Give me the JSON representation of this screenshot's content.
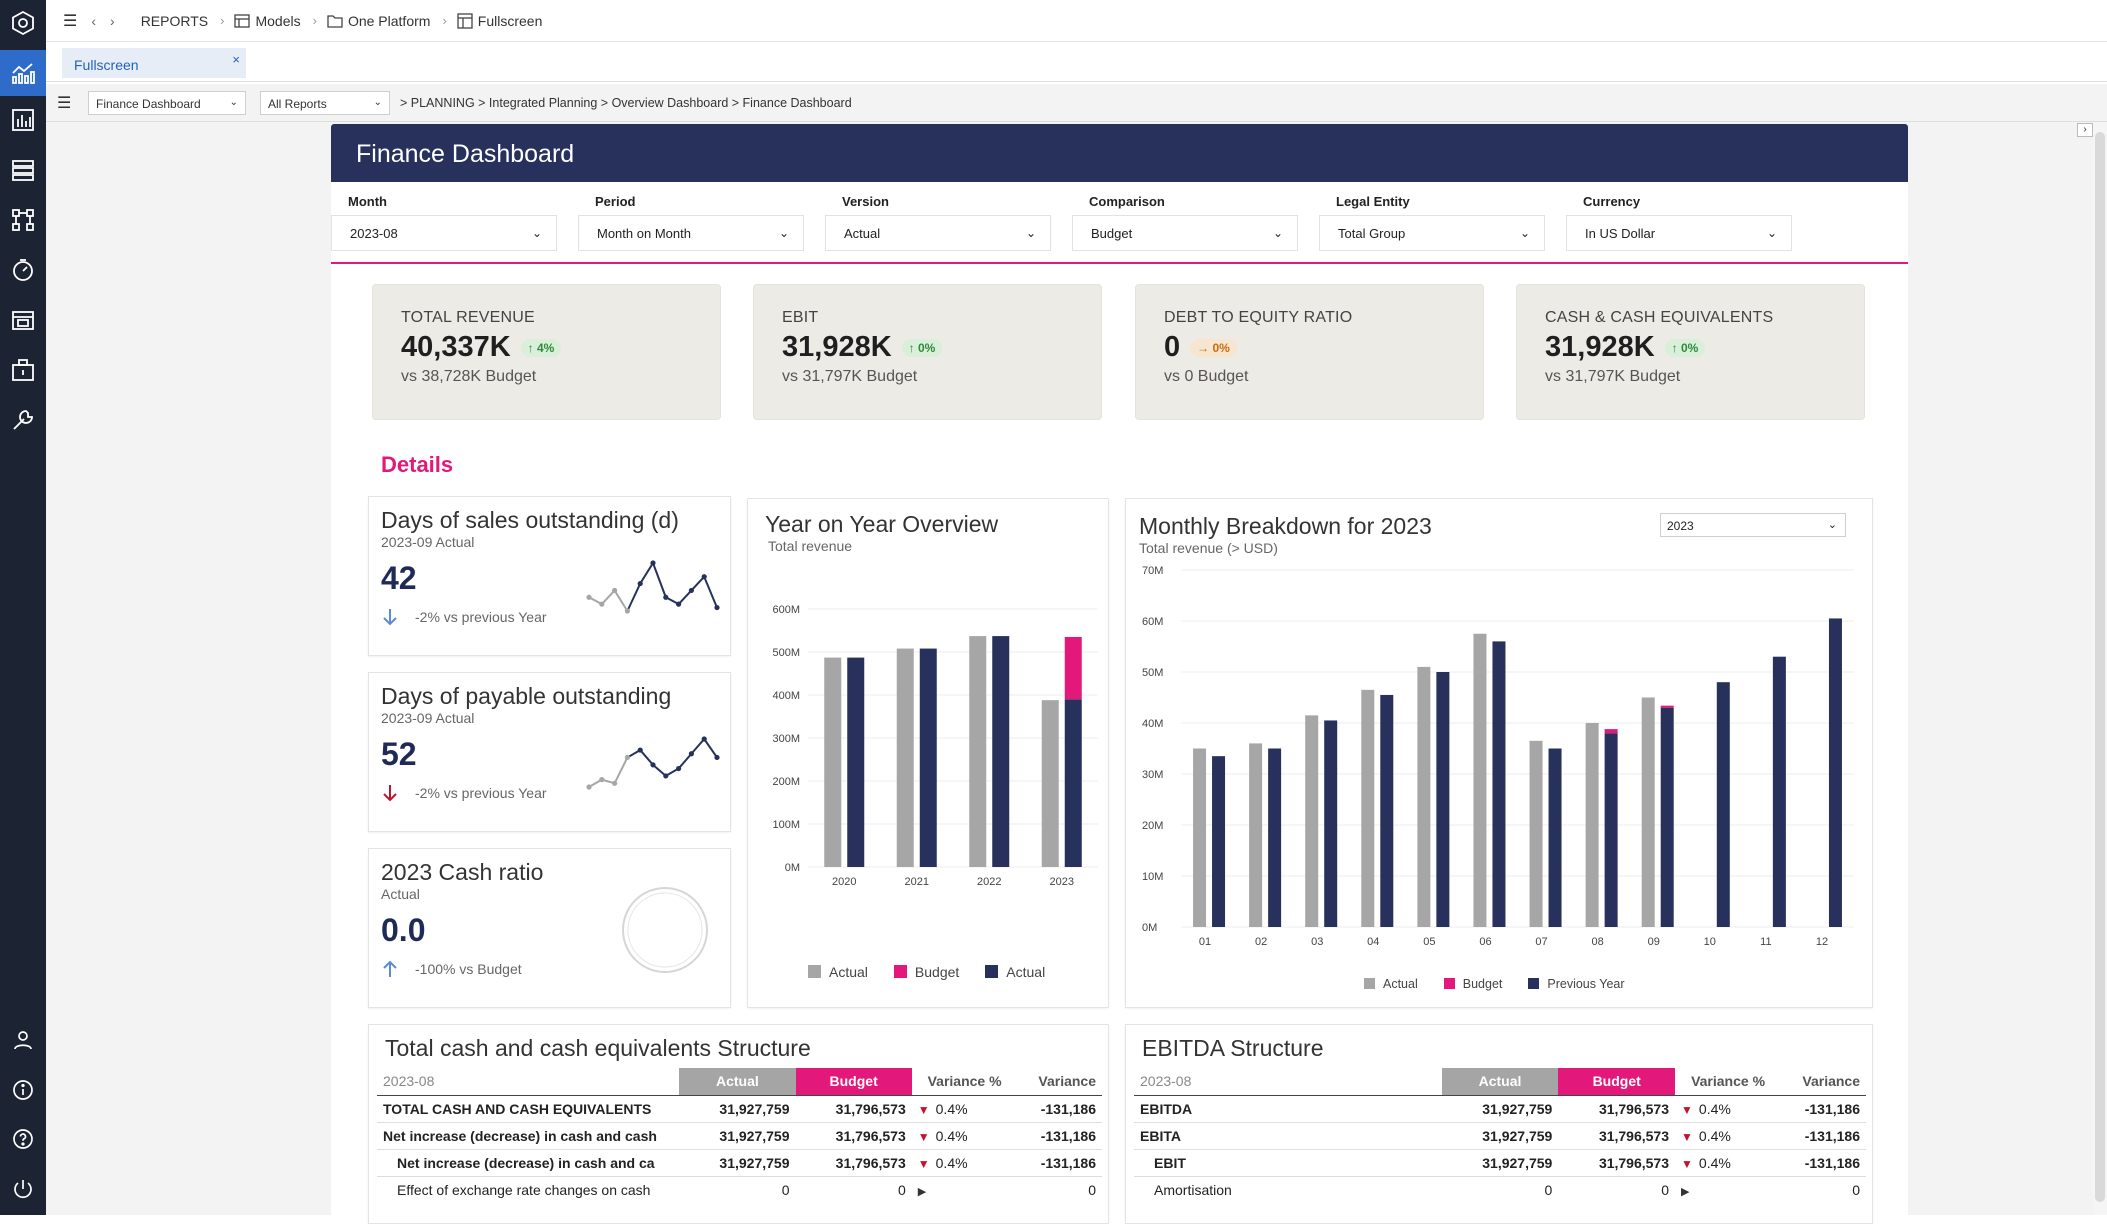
{
  "topbar": {
    "crumbs": [
      {
        "label": "REPORTS",
        "icon": "none"
      },
      {
        "label": "Models",
        "icon": "models-icon"
      },
      {
        "label": "One Platform",
        "icon": "folder-icon"
      },
      {
        "label": "Fullscreen",
        "icon": "layout-icon"
      }
    ]
  },
  "tab": {
    "label": "Fullscreen",
    "close": "×"
  },
  "toolbar": {
    "report_select": "Finance Dashboard",
    "reports_select": "All Reports",
    "breadcrumb": "> PLANNING > Integrated Planning > Overview Dashboard > Finance Dashboard"
  },
  "dashboard": {
    "title": "Finance Dashboard",
    "filters": [
      {
        "label": "Month",
        "value": "2023-08"
      },
      {
        "label": "Period",
        "value": "Month on Month"
      },
      {
        "label": "Version",
        "value": "Actual"
      },
      {
        "label": "Comparison",
        "value": "Budget"
      },
      {
        "label": "Legal Entity",
        "value": "Total Group"
      },
      {
        "label": "Currency",
        "value": "In US Dollar"
      }
    ],
    "kpis": [
      {
        "title": "TOTAL REVENUE",
        "value": "40,337K",
        "badge": "↑ 4%",
        "badge_color": "green",
        "sub": "vs 38,728K Budget"
      },
      {
        "title": "EBIT",
        "value": "31,928K",
        "badge": "↑ 0%",
        "badge_color": "green",
        "sub": "vs 31,797K Budget"
      },
      {
        "title": "DEBT TO EQUITY RATIO",
        "value": "0",
        "badge": "→ 0%",
        "badge_color": "orange",
        "sub": "vs 0 Budget"
      },
      {
        "title": "CASH & CASH EQUIVALENTS",
        "value": "31,928K",
        "badge": "↑ 0%",
        "badge_color": "green",
        "sub": "vs 31,797K Budget"
      }
    ],
    "details_heading": "Details",
    "dso": {
      "title": "Days of sales outstanding (d)",
      "subtitle": "2023-09 Actual",
      "value": "42",
      "delta": "-2% vs previous Year",
      "delta_dir": "down",
      "delta_color": "#5b8ad6",
      "spark": [
        48,
        46,
        50,
        44,
        52,
        58,
        48,
        46,
        50,
        54,
        45
      ]
    },
    "dpo": {
      "title": "Days of payable outstanding",
      "subtitle": "2023-09 Actual",
      "value": "52",
      "delta": "-2% vs previous Year",
      "delta_dir": "down",
      "delta_color": "#c0142a",
      "spark": [
        40,
        42,
        41,
        48,
        50,
        46,
        43,
        45,
        49,
        53,
        48
      ]
    },
    "cash_ratio": {
      "title": "2023 Cash ratio",
      "subtitle": "Actual",
      "value": "0.0",
      "delta": "-100% vs Budget",
      "delta_dir": "up",
      "delta_color": "#5b8ad6"
    },
    "yoy": {
      "title": "Year on Year Overview",
      "subtitle": "Total revenue"
    },
    "monthly": {
      "title": "Monthly Breakdown for 2023",
      "subtitle": "Total revenue (> USD)",
      "year_select": "2023"
    },
    "cash_table": {
      "title": "Total cash and cash equivalents Structure",
      "period": "2023-08",
      "headers": [
        "Actual",
        "Budget",
        "Variance %",
        "Variance"
      ],
      "rows": [
        {
          "label": "TOTAL CASH AND CASH EQUIVALENTS",
          "actual": "31,927,759",
          "budget": "31,796,573",
          "arrow": "▼",
          "var_pct": "0.4%",
          "var": "-131,186",
          "bold": true,
          "indent": 0
        },
        {
          "label": "Net increase (decrease) in cash and cash",
          "actual": "31,927,759",
          "budget": "31,796,573",
          "arrow": "▼",
          "var_pct": "0.4%",
          "var": "-131,186",
          "bold": true,
          "indent": 0
        },
        {
          "label": "Net increase (decrease) in cash and ca",
          "actual": "31,927,759",
          "budget": "31,796,573",
          "arrow": "▼",
          "var_pct": "0.4%",
          "var": "-131,186",
          "bold": true,
          "indent": 1
        },
        {
          "label": "Effect of exchange rate changes on cash",
          "actual": "0",
          "budget": "0",
          "arrow": "▶",
          "var_pct": "",
          "var": "0",
          "bold": false,
          "indent": 1
        }
      ]
    },
    "ebitda_table": {
      "title": "EBITDA Structure",
      "period": "2023-08",
      "headers": [
        "Actual",
        "Budget",
        "Variance %",
        "Variance"
      ],
      "rows": [
        {
          "label": "EBITDA",
          "actual": "31,927,759",
          "budget": "31,796,573",
          "arrow": "▼",
          "var_pct": "0.4%",
          "var": "-131,186",
          "bold": true,
          "indent": 0
        },
        {
          "label": "EBITA",
          "actual": "31,927,759",
          "budget": "31,796,573",
          "arrow": "▼",
          "var_pct": "0.4%",
          "var": "-131,186",
          "bold": true,
          "indent": 0
        },
        {
          "label": "EBIT",
          "actual": "31,927,759",
          "budget": "31,796,573",
          "arrow": "▼",
          "var_pct": "0.4%",
          "var": "-131,186",
          "bold": true,
          "indent": 1
        },
        {
          "label": "Amortisation",
          "actual": "0",
          "budget": "0",
          "arrow": "▶",
          "var_pct": "",
          "var": "0",
          "bold": false,
          "indent": 1
        }
      ]
    }
  },
  "colors": {
    "actual_grey": "#a6a6a6",
    "budget_pink": "#e2187a",
    "navy": "#27315c",
    "header_navy": "#27315c"
  },
  "chart_data": [
    {
      "type": "bar",
      "title": "Year on Year Overview",
      "subtitle": "Total revenue",
      "categories": [
        "2020",
        "2021",
        "2022",
        "2023"
      ],
      "y_ticks": [
        "0M",
        "100M",
        "200M",
        "300M",
        "400M",
        "500M",
        "600M"
      ],
      "ylim": [
        0,
        600
      ],
      "series": [
        {
          "name": "Actual",
          "color": "#a6a6a6",
          "values": [
            487,
            508,
            537,
            388
          ]
        },
        {
          "name": "Budget",
          "color": "#e2187a",
          "values": [
            0,
            0,
            0,
            145
          ],
          "stacked_on": "Actual (navy)"
        },
        {
          "name": "Actual",
          "color": "#27315c",
          "values": [
            487,
            508,
            537,
            390
          ]
        }
      ],
      "legend": [
        "Actual",
        "Budget",
        "Actual"
      ],
      "legend_position": "bottom"
    },
    {
      "type": "bar",
      "title": "Monthly Breakdown for 2023",
      "subtitle": "Total revenue (> USD)",
      "categories": [
        "01",
        "02",
        "03",
        "04",
        "05",
        "06",
        "07",
        "08",
        "09",
        "10",
        "11",
        "12"
      ],
      "y_ticks": [
        "0M",
        "10M",
        "20M",
        "30M",
        "40M",
        "50M",
        "60M",
        "70M"
      ],
      "ylim": [
        0,
        70
      ],
      "series": [
        {
          "name": "Actual",
          "color": "#a6a6a6",
          "values": [
            35,
            36,
            41.5,
            46.5,
            51,
            57.5,
            36.5,
            40,
            45,
            null,
            null,
            null
          ]
        },
        {
          "name": "Budget",
          "color": "#e2187a",
          "values": [
            null,
            null,
            null,
            null,
            null,
            null,
            null,
            0.8,
            0.4,
            null,
            null,
            null
          ]
        },
        {
          "name": "Previous Year",
          "color": "#27315c",
          "values": [
            33.5,
            35,
            40.5,
            45.5,
            50,
            56,
            35,
            38,
            43,
            48,
            53,
            60.5
          ]
        }
      ],
      "legend": [
        "Actual",
        "Budget",
        "Previous Year"
      ],
      "legend_position": "bottom"
    }
  ]
}
